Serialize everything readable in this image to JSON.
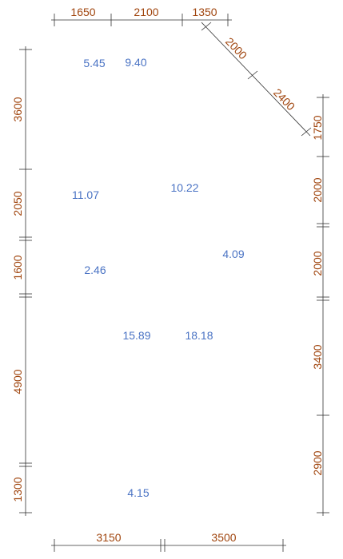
{
  "colors": {
    "dimension": "#a0450e",
    "area": "#4a73c4",
    "line": "#333333"
  },
  "dimensions": {
    "top": [
      "1650",
      "2100",
      "1350"
    ],
    "diagonal": [
      "2000",
      "2400"
    ],
    "left": [
      "3600",
      "2050",
      "1600",
      "4900",
      "1300"
    ],
    "right": [
      "1750",
      "2000",
      "2000",
      "3400",
      "2900"
    ],
    "bottom": [
      "3150",
      "3500"
    ]
  },
  "areas": [
    "5.45",
    "9.40",
    "11.07",
    "10.22",
    "4.09",
    "2.46",
    "15.89",
    "18.18",
    "4.15"
  ]
}
